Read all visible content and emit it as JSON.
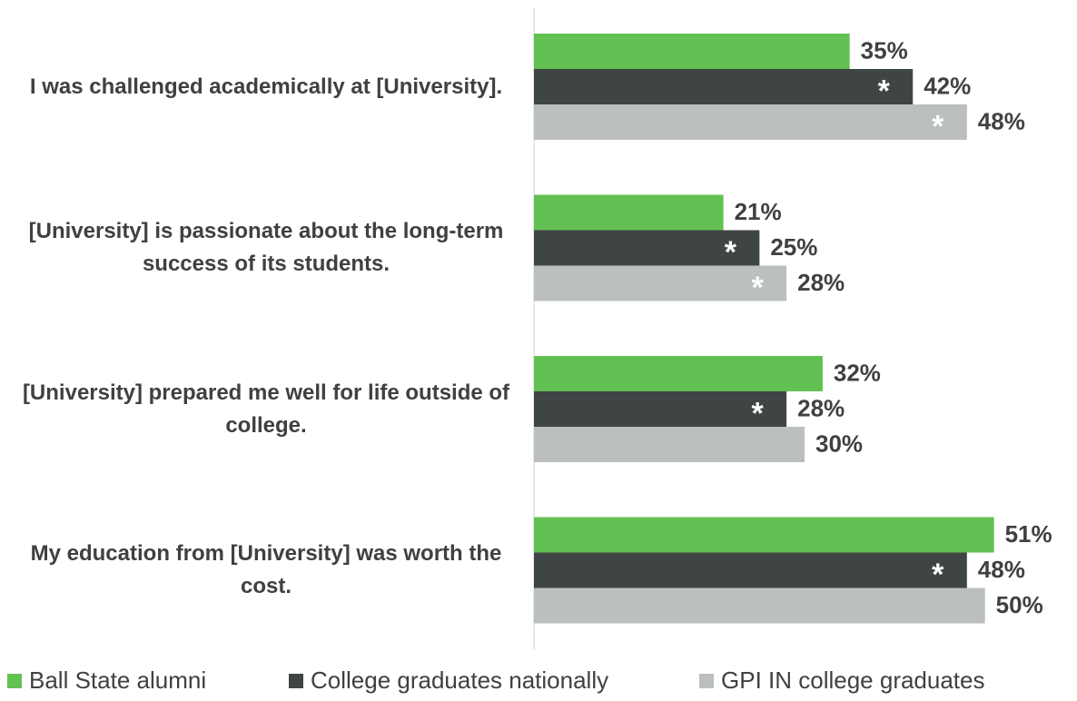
{
  "chart_data": {
    "type": "hbar",
    "categories": [
      "I was challenged academically at [University].",
      "[University] is passionate about the long-term success of its students.",
      "[University] prepared me well for life outside of college.",
      "My education from [University] was worth the cost."
    ],
    "xlim": [
      0,
      60
    ],
    "significance_marker": "*",
    "legend": "bottom",
    "series": [
      {
        "name": "Ball State alumni",
        "color": "#62c152",
        "values": [
          35,
          21,
          32,
          51
        ],
        "value_labels": [
          "35%",
          "21%",
          "32%",
          "51%"
        ],
        "significant": [
          false,
          false,
          false,
          false
        ]
      },
      {
        "name": "College graduates nationally",
        "color": "#3f4444",
        "values": [
          42,
          25,
          28,
          48
        ],
        "value_labels": [
          "42%",
          "25%",
          "28%",
          "48%"
        ],
        "significant": [
          true,
          true,
          true,
          true
        ]
      },
      {
        "name": "GPI IN college graduates",
        "color": "#bbbfbe",
        "values": [
          48,
          28,
          30,
          50
        ],
        "value_labels": [
          "48%",
          "28%",
          "30%",
          "50%"
        ],
        "significant": [
          true,
          true,
          false,
          false
        ]
      }
    ]
  }
}
